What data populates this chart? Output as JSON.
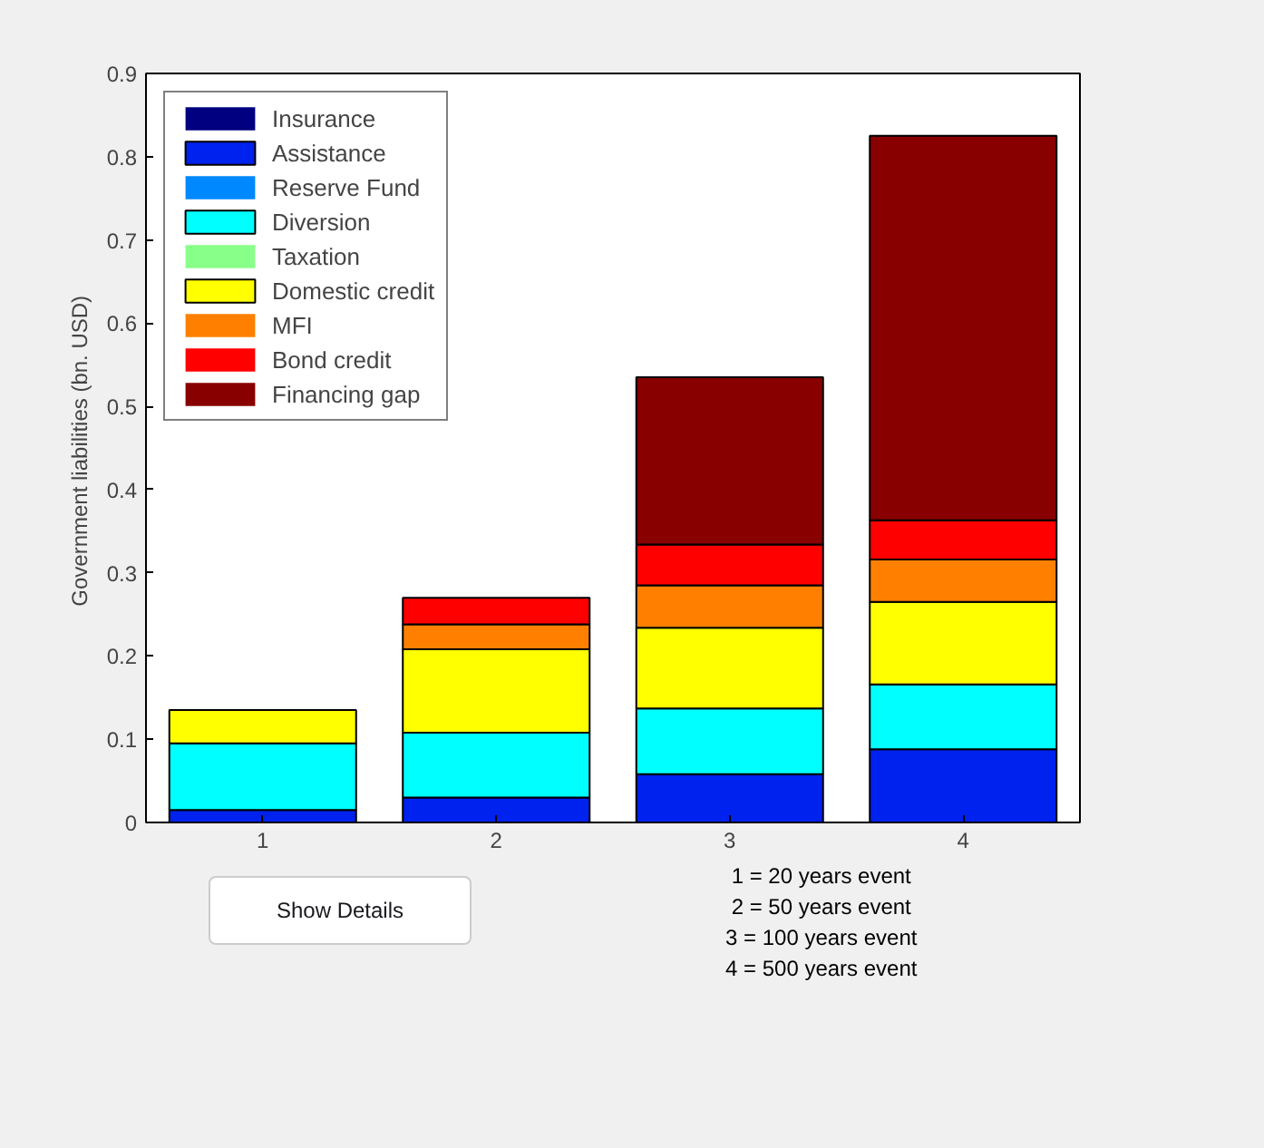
{
  "chart_data": {
    "type": "bar",
    "stacked": true,
    "ylabel": "Government liabilities  (bn. USD)",
    "categories": [
      "1",
      "2",
      "3",
      "4"
    ],
    "series": [
      {
        "name": "Insurance",
        "color": "#000080",
        "values": [
          0,
          0,
          0,
          0
        ]
      },
      {
        "name": "Assistance",
        "color": "#0022ee",
        "values": [
          0.015,
          0.03,
          0.058,
          0.088
        ]
      },
      {
        "name": "Reserve Fund",
        "color": "#0088ff",
        "values": [
          0,
          0,
          0,
          0
        ]
      },
      {
        "name": "Diversion",
        "color": "#00ffff",
        "values": [
          0.08,
          0.078,
          0.079,
          0.078
        ]
      },
      {
        "name": "Taxation",
        "color": "#88ff88",
        "values": [
          0,
          0,
          0,
          0
        ]
      },
      {
        "name": "Domestic credit",
        "color": "#ffff00",
        "values": [
          0.04,
          0.1,
          0.097,
          0.099
        ]
      },
      {
        "name": "MFI",
        "color": "#ff8000",
        "values": [
          0,
          0.03,
          0.051,
          0.051
        ]
      },
      {
        "name": "Bond credit",
        "color": "#ff0000",
        "values": [
          0,
          0.032,
          0.049,
          0.047
        ]
      },
      {
        "name": "Financing gap",
        "color": "#880000",
        "values": [
          0,
          0,
          0.201,
          0.462
        ]
      }
    ],
    "ylim": [
      0,
      0.9
    ],
    "yticks": [
      0,
      0.1,
      0.2,
      0.3,
      0.4,
      0.5,
      0.6,
      0.7,
      0.8,
      0.9
    ],
    "legend": "top left",
    "annotations": [
      "Show Details",
      "1 = 20 years event",
      "2 = 50 years event",
      "3 = 100 years event",
      "4 = 500 years event"
    ]
  }
}
